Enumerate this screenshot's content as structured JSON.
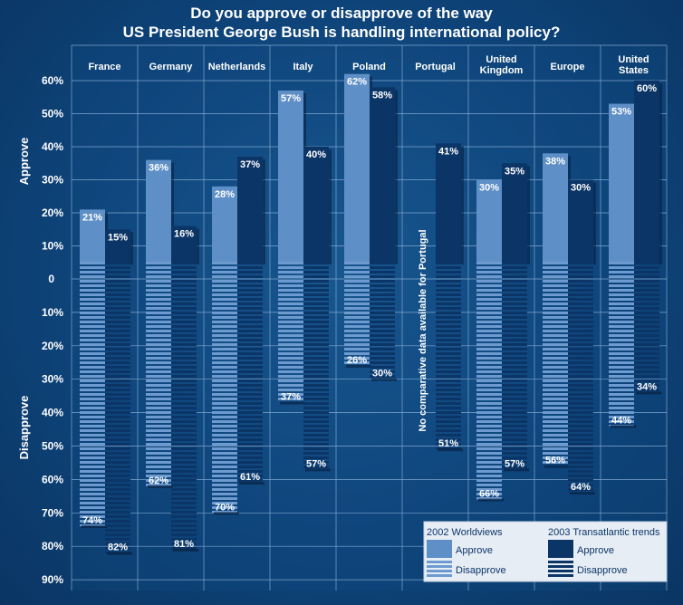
{
  "title": {
    "line1": "Do you approve or disapprove of the way",
    "line2": "US President George Bush is handling international policy?"
  },
  "axis": {
    "approve_label": "Approve",
    "disapprove_label": "Disapprove",
    "approve_ticks": [
      "60%",
      "50%",
      "40%",
      "30%",
      "20%",
      "10%"
    ],
    "zero_tick": "0",
    "disapprove_ticks": [
      "10%",
      "20%",
      "30%",
      "40%",
      "50%",
      "60%",
      "70%",
      "80%",
      "90%"
    ]
  },
  "colors": {
    "approve_2002": "#5e8fc6",
    "approve_2003": "#0c3567",
    "disapprove_2002_stripe": "#6d9bd0",
    "disapprove_2003_stripe": "#0c3567",
    "grid": "#7fa6d0"
  },
  "legend": {
    "col1_title": "2002 Worldviews",
    "col2_title": "2003 Transatlantic trends",
    "approve": "Approve",
    "disapprove": "Disapprove"
  },
  "portugal_note": "No comparative data available for Portugal",
  "chart_data": {
    "type": "bar",
    "title": "Do you approve or disapprove of the way US President George Bush is handling international policy?",
    "categories": [
      "France",
      "Germany",
      "Netherlands",
      "Italy",
      "Poland",
      "Portugal",
      "United Kingdom",
      "Europe",
      "United States"
    ],
    "category_lines": [
      [
        "France"
      ],
      [
        "Germany"
      ],
      [
        "Netherlands"
      ],
      [
        "Italy"
      ],
      [
        "Poland"
      ],
      [
        "Portugal"
      ],
      [
        "United",
        "Kingdom"
      ],
      [
        "Europe"
      ],
      [
        "United",
        "States"
      ]
    ],
    "ylabel_top": "Approve",
    "ylabel_bottom": "Disapprove",
    "ylim_approve": [
      0,
      60
    ],
    "ylim_disapprove": [
      0,
      90
    ],
    "series": [
      {
        "name": "2002 Worldviews Approve",
        "values": [
          21,
          36,
          28,
          57,
          62,
          null,
          30,
          38,
          53
        ]
      },
      {
        "name": "2002 Worldviews Disapprove",
        "values": [
          74,
          62,
          70,
          37,
          26,
          null,
          66,
          56,
          44
        ]
      },
      {
        "name": "2003 Transatlantic trends Approve",
        "values": [
          15,
          16,
          37,
          40,
          58,
          41,
          35,
          30,
          60
        ]
      },
      {
        "name": "2003 Transatlantic trends Disapprove",
        "values": [
          82,
          81,
          61,
          57,
          30,
          51,
          57,
          64,
          34
        ]
      }
    ],
    "grid": true,
    "legend_position": "bottom-right"
  }
}
